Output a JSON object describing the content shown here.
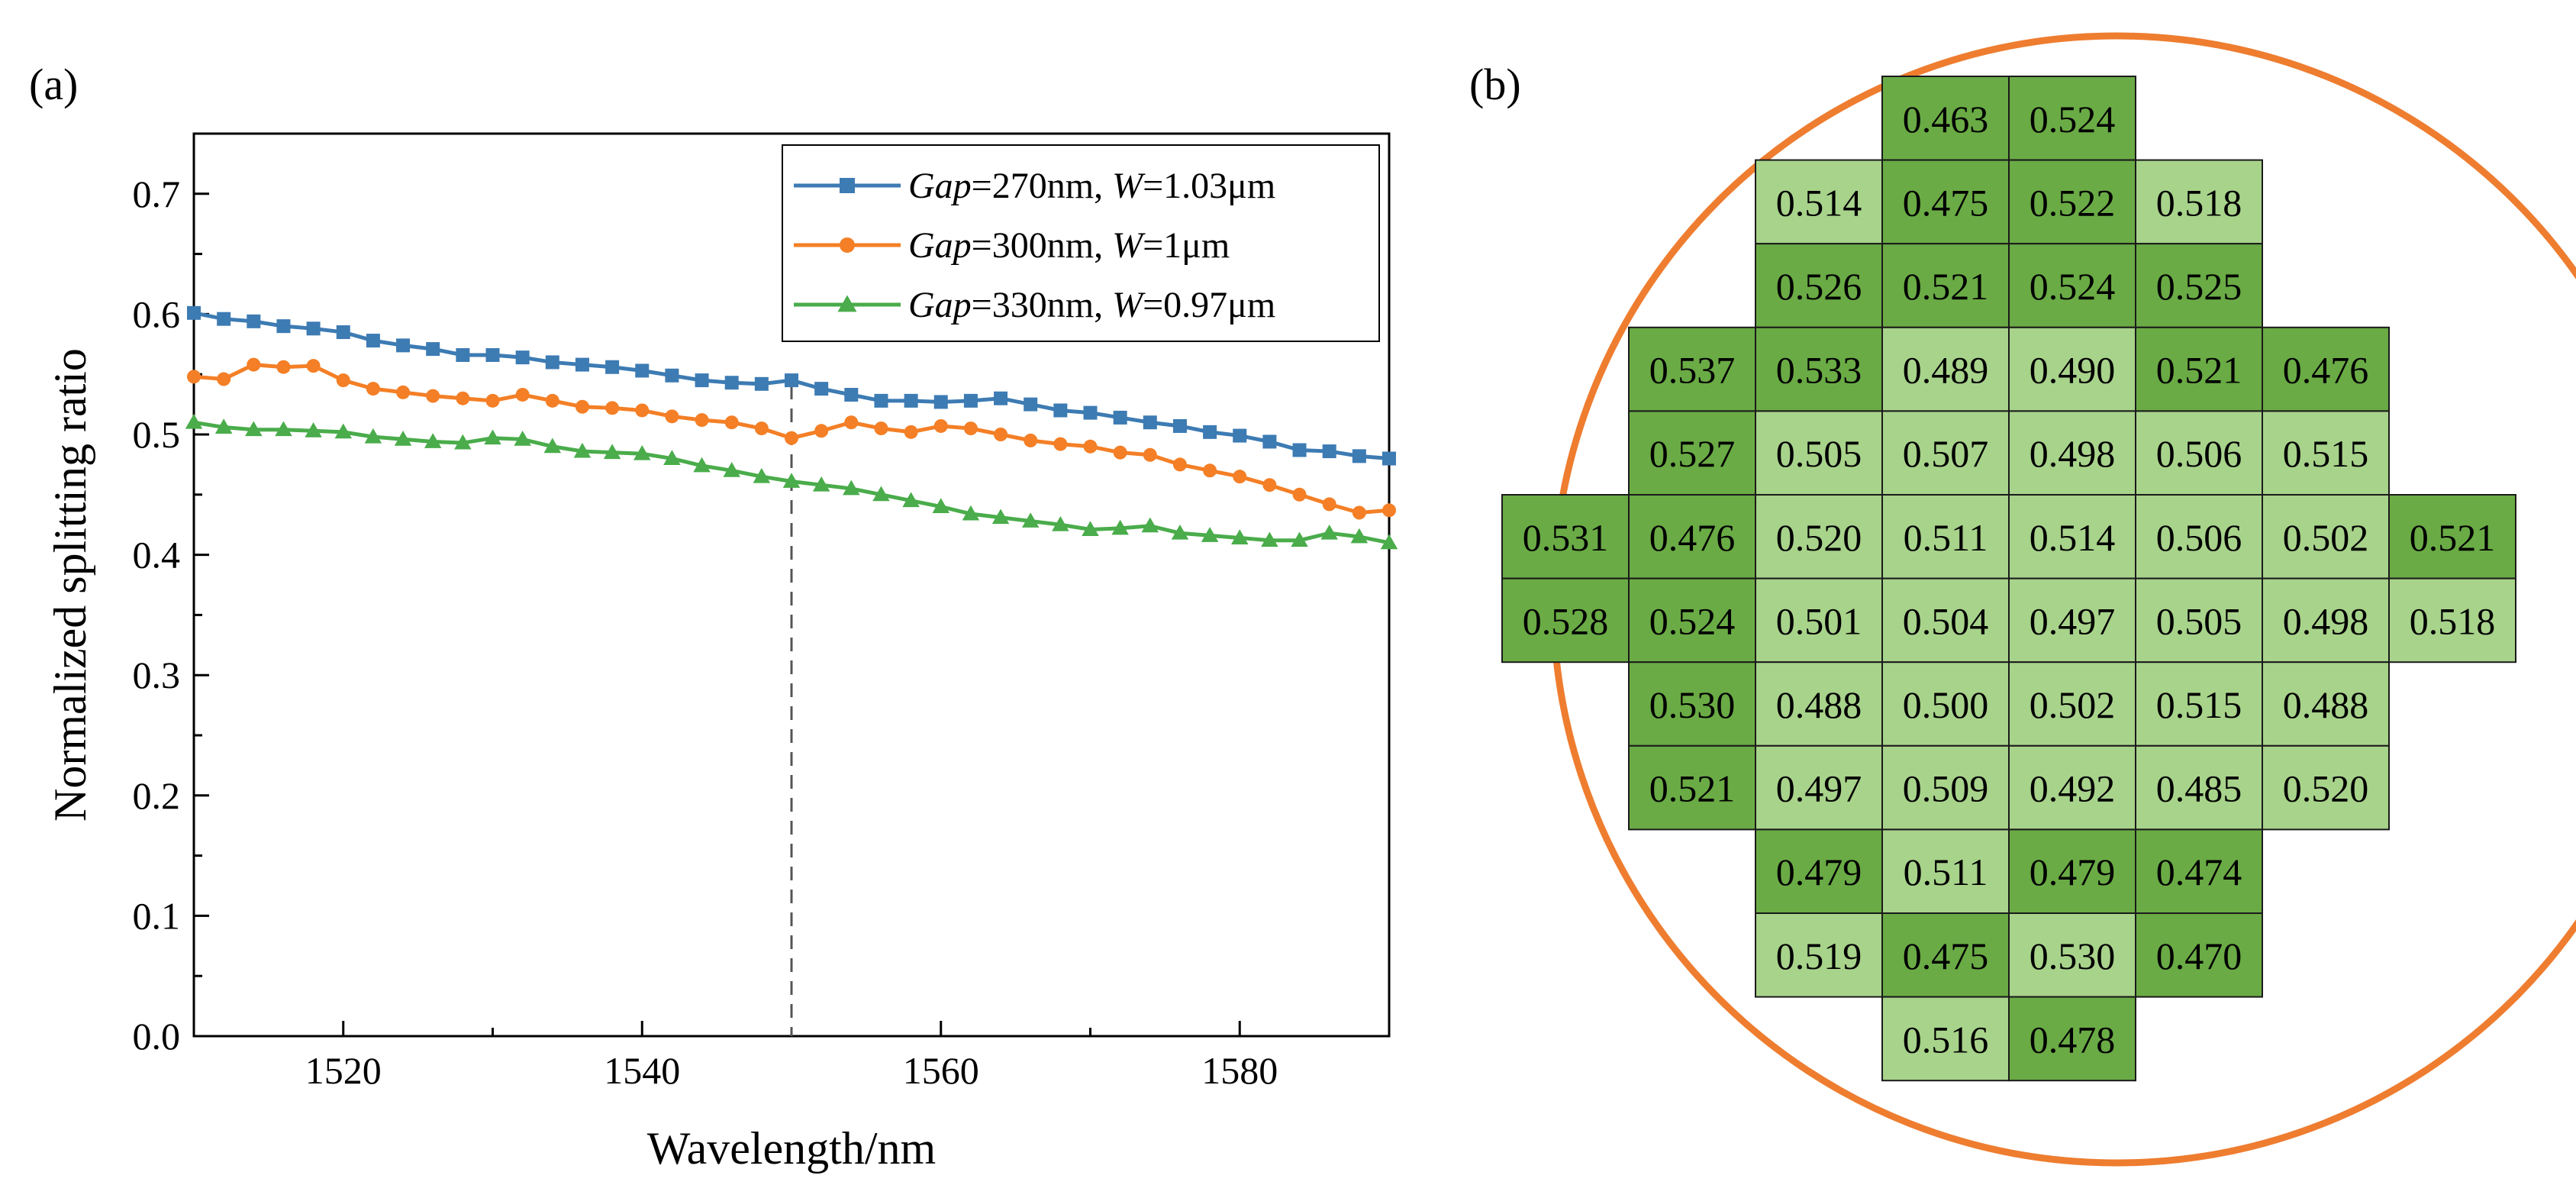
{
  "colors": {
    "blue": "#3d7bb3",
    "orange": "#f47f26",
    "green": "#4aac4b",
    "cell_dark": "#6aab45",
    "cell_light": "#a8d38b",
    "wafer": "#ee7d30"
  },
  "panels": {
    "a_label": "(a)",
    "b_label": "(b)"
  },
  "chart_data": [
    {
      "type": "line",
      "xlabel": "Wavelength/nm",
      "ylabel": "Normalized splitting ratio",
      "xlim": [
        1510,
        1590
      ],
      "ylim": [
        0.0,
        0.75
      ],
      "xticks": [
        1520,
        1540,
        1560,
        1580
      ],
      "yticks": [
        0.0,
        0.1,
        0.2,
        0.3,
        0.4,
        0.5,
        0.6,
        0.7
      ],
      "ytick_labels": [
        "0.0",
        "0.1",
        "0.2",
        "0.3",
        "0.4",
        "0.5",
        "0.6",
        "0.7"
      ],
      "vline_x": 1550,
      "legend_position": "top-right",
      "series": [
        {
          "name_gap": "Gap",
          "name_mid": "=270nm, ",
          "name_w": "W",
          "name_end": "=1.03μm",
          "color": "#3d7bb3",
          "marker": "square",
          "x": [
            1510,
            1512,
            1514,
            1516,
            1518,
            1520,
            1522,
            1524,
            1526,
            1528,
            1530,
            1532,
            1534,
            1536,
            1538,
            1540,
            1542,
            1544,
            1546,
            1548,
            1550,
            1552,
            1554,
            1556,
            1558,
            1560,
            1562,
            1564,
            1566,
            1568,
            1570,
            1572,
            1574,
            1576,
            1578,
            1580,
            1582,
            1584,
            1586,
            1588,
            1590
          ],
          "y": [
            0.601,
            0.596,
            0.594,
            0.59,
            0.588,
            0.585,
            0.578,
            0.574,
            0.571,
            0.566,
            0.566,
            0.564,
            0.56,
            0.558,
            0.556,
            0.553,
            0.549,
            0.545,
            0.543,
            0.542,
            0.545,
            0.538,
            0.533,
            0.528,
            0.528,
            0.527,
            0.528,
            0.53,
            0.525,
            0.52,
            0.518,
            0.514,
            0.51,
            0.507,
            0.502,
            0.499,
            0.494,
            0.487,
            0.486,
            0.482,
            0.48
          ]
        },
        {
          "name_gap": "Gap",
          "name_mid": "=300nm, ",
          "name_w": "W",
          "name_end": "=1μm",
          "color": "#f47f26",
          "marker": "circle",
          "x": [
            1510,
            1512,
            1514,
            1516,
            1518,
            1520,
            1522,
            1524,
            1526,
            1528,
            1530,
            1532,
            1534,
            1536,
            1538,
            1540,
            1542,
            1544,
            1546,
            1548,
            1550,
            1552,
            1554,
            1556,
            1558,
            1560,
            1562,
            1564,
            1566,
            1568,
            1570,
            1572,
            1574,
            1576,
            1578,
            1580,
            1582,
            1584,
            1586,
            1588,
            1590
          ],
          "y": [
            0.548,
            0.546,
            0.558,
            0.556,
            0.557,
            0.545,
            0.538,
            0.535,
            0.532,
            0.53,
            0.528,
            0.533,
            0.528,
            0.523,
            0.522,
            0.52,
            0.515,
            0.512,
            0.51,
            0.505,
            0.497,
            0.503,
            0.51,
            0.505,
            0.502,
            0.507,
            0.505,
            0.5,
            0.495,
            0.492,
            0.49,
            0.485,
            0.483,
            0.475,
            0.47,
            0.465,
            0.458,
            0.45,
            0.442,
            0.435,
            0.437
          ]
        },
        {
          "name_gap": "Gap",
          "name_mid": "=330nm, ",
          "name_w": "W",
          "name_end": "=0.97μm",
          "color": "#4aac4b",
          "marker": "triangle",
          "x": [
            1510,
            1512,
            1514,
            1516,
            1518,
            1520,
            1522,
            1524,
            1526,
            1528,
            1530,
            1532,
            1534,
            1536,
            1538,
            1540,
            1542,
            1544,
            1546,
            1548,
            1550,
            1552,
            1554,
            1556,
            1558,
            1560,
            1562,
            1564,
            1566,
            1568,
            1570,
            1572,
            1574,
            1576,
            1578,
            1580,
            1582,
            1584,
            1586,
            1588,
            1590
          ],
          "y": [
            0.51,
            0.506,
            0.504,
            0.504,
            0.503,
            0.502,
            0.498,
            0.496,
            0.494,
            0.493,
            0.497,
            0.496,
            0.49,
            0.486,
            0.485,
            0.484,
            0.48,
            0.474,
            0.47,
            0.465,
            0.461,
            0.458,
            0.455,
            0.45,
            0.445,
            0.44,
            0.434,
            0.431,
            0.428,
            0.425,
            0.421,
            0.422,
            0.424,
            0.418,
            0.416,
            0.414,
            0.412,
            0.412,
            0.418,
            0.415,
            0.41
          ]
        }
      ]
    },
    {
      "type": "table",
      "title": "",
      "rows": [
        {
          "start": 3,
          "values": [
            "0.463",
            "0.524"
          ],
          "shade": [
            "d",
            "d"
          ]
        },
        {
          "start": 2,
          "values": [
            "0.514",
            "0.475",
            "0.522",
            "0.518"
          ],
          "shade": [
            "l",
            "d",
            "d",
            "l"
          ]
        },
        {
          "start": 2,
          "values": [
            "0.526",
            "0.521",
            "0.524",
            "0.525"
          ],
          "shade": [
            "d",
            "d",
            "d",
            "d"
          ]
        },
        {
          "start": 1,
          "values": [
            "0.537",
            "0.533",
            "0.489",
            "0.490",
            "0.521",
            "0.476"
          ],
          "shade": [
            "d",
            "d",
            "l",
            "l",
            "d",
            "d"
          ]
        },
        {
          "start": 1,
          "values": [
            "0.527",
            "0.505",
            "0.507",
            "0.498",
            "0.506",
            "0.515"
          ],
          "shade": [
            "d",
            "l",
            "l",
            "l",
            "l",
            "l"
          ]
        },
        {
          "start": 0,
          "values": [
            "0.531",
            "0.476",
            "0.520",
            "0.511",
            "0.514",
            "0.506",
            "0.502",
            "0.521"
          ],
          "shade": [
            "d",
            "d",
            "l",
            "l",
            "l",
            "l",
            "l",
            "d"
          ]
        },
        {
          "start": 0,
          "values": [
            "0.528",
            "0.524",
            "0.501",
            "0.504",
            "0.497",
            "0.505",
            "0.498",
            "0.518"
          ],
          "shade": [
            "d",
            "d",
            "l",
            "l",
            "l",
            "l",
            "l",
            "l"
          ]
        },
        {
          "start": 1,
          "values": [
            "0.530",
            "0.488",
            "0.500",
            "0.502",
            "0.515",
            "0.488"
          ],
          "shade": [
            "d",
            "l",
            "l",
            "l",
            "l",
            "l"
          ]
        },
        {
          "start": 1,
          "values": [
            "0.521",
            "0.497",
            "0.509",
            "0.492",
            "0.485",
            "0.520"
          ],
          "shade": [
            "d",
            "l",
            "l",
            "l",
            "l",
            "l"
          ]
        },
        {
          "start": 2,
          "values": [
            "0.479",
            "0.511",
            "0.479",
            "0.474"
          ],
          "shade": [
            "d",
            "l",
            "d",
            "d"
          ]
        },
        {
          "start": 2,
          "values": [
            "0.519",
            "0.475",
            "0.530",
            "0.470"
          ],
          "shade": [
            "l",
            "d",
            "l",
            "d"
          ]
        },
        {
          "start": 3,
          "values": [
            "0.516",
            "0.478"
          ],
          "shade": [
            "l",
            "d"
          ]
        }
      ]
    }
  ]
}
